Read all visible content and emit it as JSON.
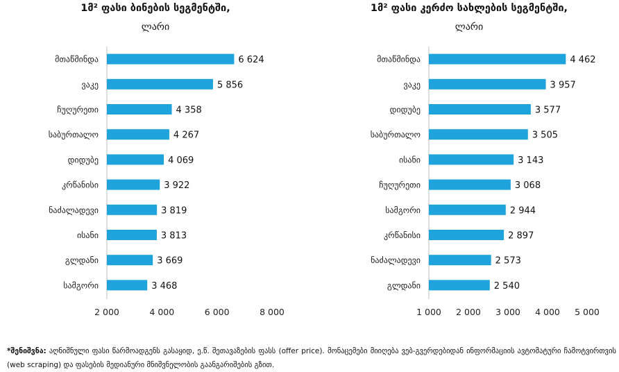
{
  "chart_data": [
    {
      "type": "bar",
      "orientation": "horizontal",
      "title": "1მ² ფასი ბინების სეგმენტში,",
      "subtitle": "ლარი",
      "categories": [
        "მთაწმინდა",
        "ვაკე",
        "ჩუღურეთი",
        "საბურთალო",
        "დიდუბე",
        "კრწანისი",
        "ნაძალადევი",
        "ისანი",
        "გლდანი",
        "სამგორი"
      ],
      "values": [
        6624,
        5856,
        4358,
        4267,
        4069,
        3922,
        3819,
        3813,
        3669,
        3468
      ],
      "value_labels": [
        "6 624",
        "5 856",
        "4 358",
        "4 267",
        "4 069",
        "3 922",
        "3 819",
        "3 813",
        "3 669",
        "3 468"
      ],
      "xlim": [
        2000,
        8000
      ],
      "xticks": [
        2000,
        4000,
        6000,
        8000
      ],
      "xtick_labels": [
        "2 000",
        "4 000",
        "6 000",
        "8 000"
      ],
      "bar_color": "#1ea3dc",
      "grid": false
    },
    {
      "type": "bar",
      "orientation": "horizontal",
      "title": "1მ² ფასი კერძო სახლების სეგმენტში,",
      "subtitle": "ლარი",
      "categories": [
        "მთაწმინდა",
        "ვაკე",
        "დიდუბე",
        "საბურთალო",
        "ისანი",
        "ჩუღურეთი",
        "სამგორი",
        "კრწანისი",
        "ნაძალადევი",
        "გლდანი"
      ],
      "values": [
        4462,
        3957,
        3577,
        3505,
        3143,
        3068,
        2944,
        2897,
        2573,
        2540
      ],
      "value_labels": [
        "4 462",
        "3 957",
        "3 577",
        "3 505",
        "3 143",
        "3 068",
        "2 944",
        "2 897",
        "2 573",
        "2 540"
      ],
      "xlim": [
        1000,
        5000
      ],
      "xticks": [
        1000,
        2000,
        3000,
        4000,
        5000
      ],
      "xtick_labels": [
        "1 000",
        "2 000",
        "3 000",
        "4 000",
        "5 000"
      ],
      "bar_color": "#1ea3dc",
      "grid": false
    }
  ],
  "footnote": {
    "label": "*შენიშვნა:",
    "text": " აღნიშნული ფასი წარმოადგენს გასაყიდ, ე.წ. შეთავაზების ფასს (offer price). მონაცემები მიიღება ვებ-გვერდებიდან ინფორმაციის ავტომატური ჩამოტვირთვის (web scraping) და ფასების მედიანური მნიშვნელობის გაანგარიშების გზით."
  }
}
